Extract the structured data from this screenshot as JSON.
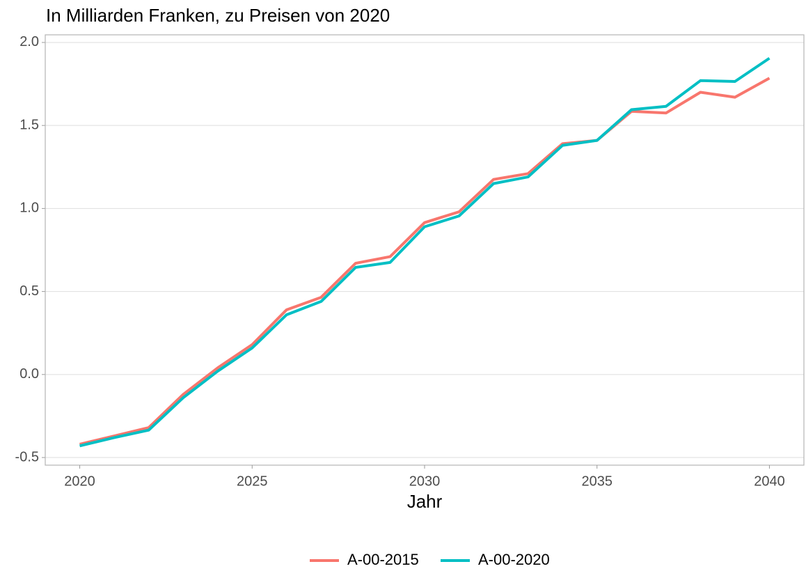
{
  "chart_data": {
    "type": "line",
    "title": "In Milliarden Franken, zu Preisen von 2020",
    "x_label": "Jahr",
    "x": [
      2020,
      2021,
      2022,
      2023,
      2024,
      2025,
      2026,
      2027,
      2028,
      2029,
      2030,
      2031,
      2032,
      2033,
      2034,
      2035,
      2036,
      2037,
      2038,
      2039,
      2040
    ],
    "series": [
      {
        "name": "A-00-2015",
        "color": "#F8766D",
        "values": [
          -0.42,
          -0.37,
          -0.32,
          -0.12,
          0.04,
          0.18,
          0.39,
          0.465,
          0.67,
          0.71,
          0.915,
          0.98,
          1.175,
          1.21,
          1.39,
          1.41,
          1.585,
          1.575,
          1.7,
          1.67,
          1.785
        ]
      },
      {
        "name": "A-00-2020",
        "color": "#00BFC4",
        "values": [
          -0.43,
          -0.38,
          -0.335,
          -0.14,
          0.02,
          0.16,
          0.36,
          0.44,
          0.645,
          0.675,
          0.89,
          0.955,
          1.15,
          1.19,
          1.38,
          1.41,
          1.595,
          1.615,
          1.77,
          1.765,
          1.905
        ]
      }
    ],
    "xlim": [
      2019,
      2041
    ],
    "xticks": [
      2020,
      2025,
      2030,
      2035,
      2040
    ],
    "ylim": [
      -0.546,
      2.046
    ],
    "yticks": [
      {
        "value": 2,
        "label": "2.0"
      },
      1.5,
      {
        "value": 1,
        "label": "1.0"
      },
      0.5,
      {
        "value": 0,
        "label": "0.0"
      },
      -0.5
    ],
    "grid": true,
    "legend": "bottom"
  }
}
